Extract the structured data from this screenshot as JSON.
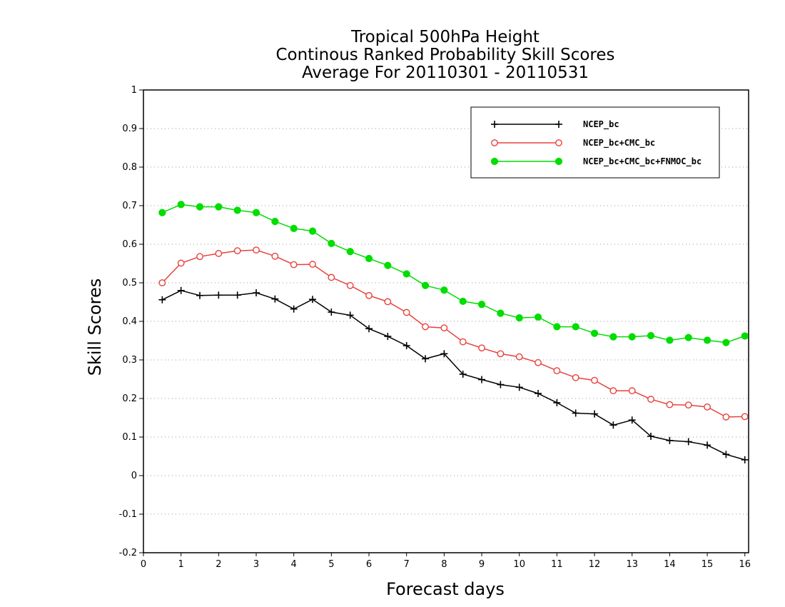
{
  "chart_data": {
    "type": "line",
    "title_lines": [
      "Tropical 500hPa Height",
      "Continous Ranked Probability Skill Scores",
      "Average For 20110301 - 20110531"
    ],
    "xlabel": "Forecast days",
    "ylabel": "Skill Scores",
    "xlim": [
      0,
      16.1
    ],
    "ylim": [
      -0.2,
      1
    ],
    "x_ticks": [
      "0",
      "1",
      "2",
      "3",
      "4",
      "5",
      "6",
      "7",
      "8",
      "9",
      "10",
      "11",
      "12",
      "13",
      "14",
      "15",
      "16"
    ],
    "y_ticks": [
      "1",
      "0.9",
      "0.8",
      "0.7",
      "0.6",
      "0.5",
      "0.4",
      "0.3",
      "0.2",
      "0.1",
      "0",
      "-0.1",
      "-0.2"
    ],
    "grid": "horizontal dotted",
    "legend_position": "top-right",
    "x": [
      0.5,
      1,
      1.5,
      2,
      2.5,
      3,
      3.5,
      4,
      4.5,
      5,
      5.5,
      6,
      6.5,
      7,
      7.5,
      8,
      8.5,
      9,
      9.5,
      10,
      10.5,
      11,
      11.5,
      12,
      12.5,
      13,
      13.5,
      14,
      14.5,
      15,
      15.5,
      16
    ],
    "series": [
      {
        "name": "NCEP_bc",
        "color": "#000000",
        "marker": "plus",
        "values": [
          0.456,
          0.48,
          0.467,
          0.468,
          0.468,
          0.474,
          0.458,
          0.432,
          0.457,
          0.424,
          0.416,
          0.381,
          0.361,
          0.337,
          0.303,
          0.316,
          0.263,
          0.249,
          0.236,
          0.229,
          0.213,
          0.189,
          0.162,
          0.16,
          0.131,
          0.144,
          0.102,
          0.091,
          0.088,
          0.079,
          0.055,
          0.041
        ]
      },
      {
        "name": "NCEP_bc+CMC_bc",
        "color": "#e8413c",
        "marker": "open-circle",
        "values": [
          0.5,
          0.551,
          0.568,
          0.576,
          0.583,
          0.585,
          0.569,
          0.547,
          0.548,
          0.514,
          0.493,
          0.467,
          0.451,
          0.423,
          0.386,
          0.383,
          0.347,
          0.331,
          0.316,
          0.308,
          0.293,
          0.272,
          0.254,
          0.247,
          0.22,
          0.22,
          0.198,
          0.184,
          0.183,
          0.178,
          0.152,
          0.153
        ]
      },
      {
        "name": "NCEP_bc+CMC_bc+FNMOC_bc",
        "color": "#00dd00",
        "marker": "filled-circle",
        "values": [
          0.682,
          0.703,
          0.697,
          0.697,
          0.688,
          0.682,
          0.659,
          0.641,
          0.634,
          0.602,
          0.581,
          0.563,
          0.545,
          0.523,
          0.493,
          0.481,
          0.452,
          0.444,
          0.421,
          0.409,
          0.411,
          0.386,
          0.386,
          0.369,
          0.36,
          0.36,
          0.363,
          0.351,
          0.358,
          0.351,
          0.345,
          0.362
        ]
      }
    ]
  }
}
